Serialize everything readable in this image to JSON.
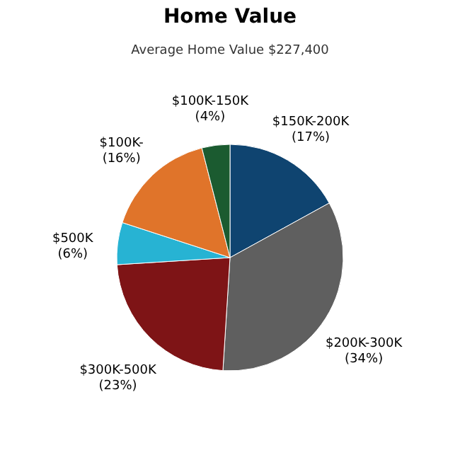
{
  "chart_data": {
    "type": "pie",
    "title": "Home Value",
    "subtitle": "Average Home Value  $227,400",
    "categories": [
      "$150K-200K",
      "$200K-300K",
      "$300K-500K",
      "$500K",
      "$100K-",
      "$100K-150K"
    ],
    "values": [
      17,
      34,
      23,
      6,
      16,
      4
    ],
    "colors": [
      "#0f4470",
      "#5f5f5f",
      "#7e1416",
      "#27b3d3",
      "#e0742a",
      "#1b5b30"
    ],
    "value_labels": [
      "(17%)",
      "(34%)",
      "(23%)",
      "(6%)",
      "(16%)",
      "(4%)"
    ],
    "legend": false
  }
}
